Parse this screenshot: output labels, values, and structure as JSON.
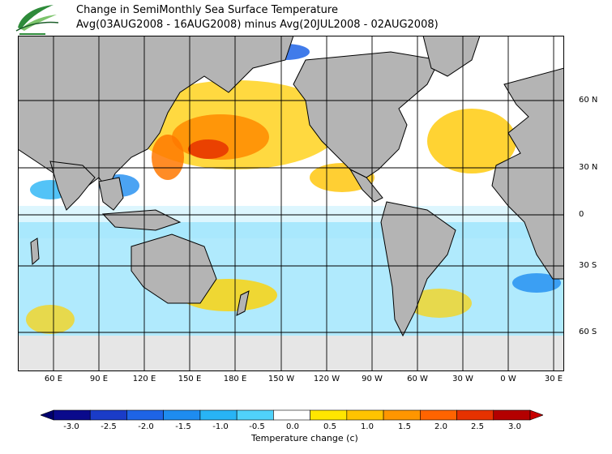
{
  "header": {
    "title_line1": "Change in SemiMonthly Sea Surface Temperature",
    "title_line2": "Avg(03AUG2008 - 16AUG2008) minus Avg(20JUL2008 - 02AUG2008)"
  },
  "map": {
    "lat_labels": [
      "60 N",
      "30 N",
      "0",
      "30 S",
      "60 S"
    ],
    "lon_labels": [
      "60 E",
      "90 E",
      "120 E",
      "150 E",
      "180 E",
      "150 W",
      "120 W",
      "90 W",
      "60 W",
      "30 W",
      "0 W",
      "30 E"
    ]
  },
  "legend": {
    "title": "Temperature change  (c)",
    "ticks": [
      "-3.0",
      "-2.5",
      "-2.0",
      "-1.5",
      "-1.0",
      "-0.5",
      "0.0",
      "0.5",
      "1.0",
      "1.5",
      "2.0",
      "2.5",
      "3.0"
    ],
    "colors": [
      "#0a0a8c",
      "#1a3cc8",
      "#1e64e6",
      "#1e8cf0",
      "#28b4f5",
      "#50d2fa",
      "#ffffff",
      "#ffe600",
      "#ffc300",
      "#ff9600",
      "#ff6400",
      "#e63200",
      "#b40000"
    ],
    "under_color": "#00006e",
    "over_color": "#c80000"
  },
  "colors": {
    "land": "#b4b4b4",
    "ice": "#e6e6e6",
    "grid": "#000000"
  }
}
